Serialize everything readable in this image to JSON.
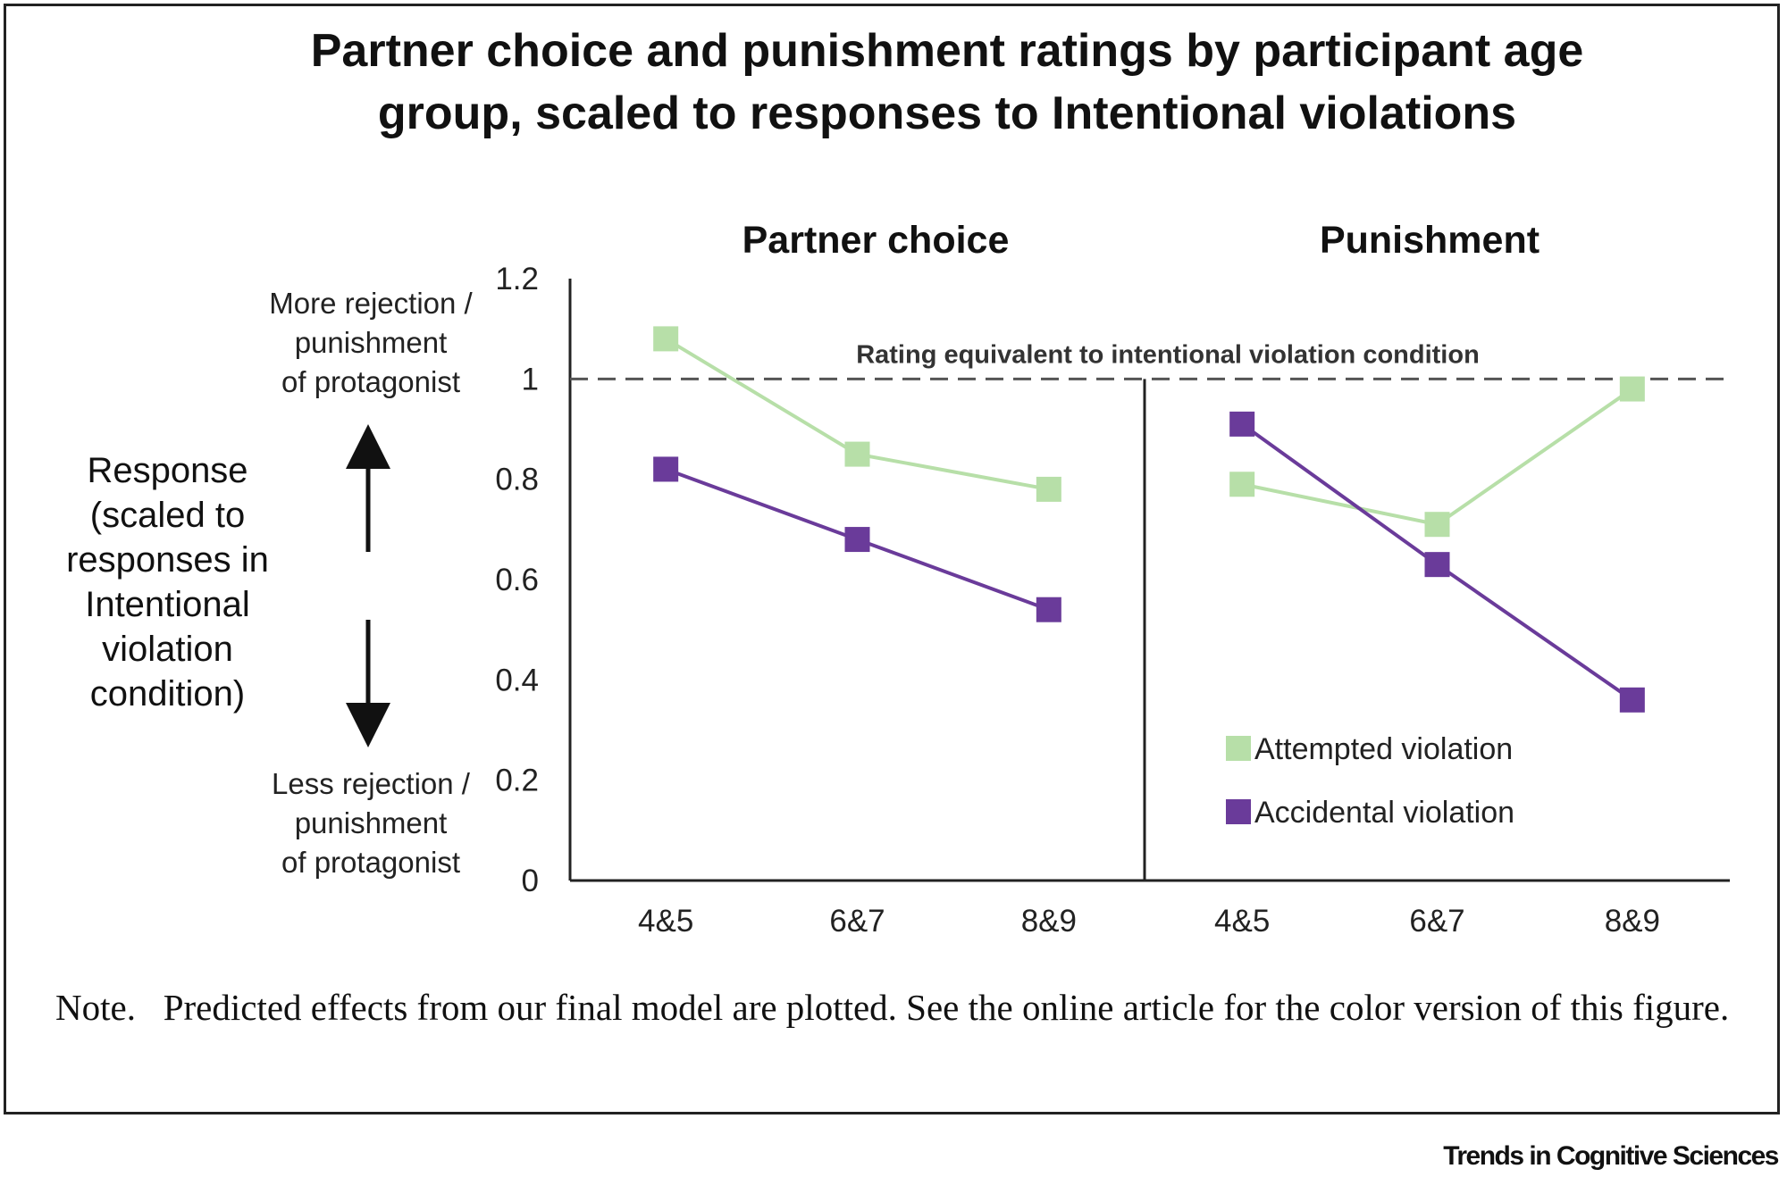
{
  "figure": {
    "title_lines": [
      "Partner choice and punishment ratings by participant age",
      "group, scaled to responses to Intentional violations"
    ],
    "ylabel_lines": [
      "Response",
      "(scaled to",
      "responses in",
      "Intentional",
      "violation",
      "condition)"
    ],
    "top_annotation_lines": [
      "More rejection /",
      "punishment",
      "of protagonist"
    ],
    "bottom_annotation_lines": [
      "Less rejection /",
      "punishment",
      "of protagonist"
    ],
    "note_label": "Note.",
    "note_text": "Predicted effects from our final model are plotted. See the online article for the color version of this figure.",
    "credit": "Trends in Cognitive Sciences"
  },
  "chart_data": {
    "type": "line",
    "ylim": [
      0,
      1.2
    ],
    "yticks": [
      "0",
      "0.2",
      "0.4",
      "0.6",
      "0.8",
      "1",
      "1.2"
    ],
    "reference_line": {
      "y": 1,
      "label": "Rating equivalent to intentional violation condition"
    },
    "legend_position": "bottom-right",
    "colors": {
      "Attempted violation": "#b7dfa8",
      "Accidental violation": "#6a3b9a"
    },
    "panels": [
      {
        "title": "Partner choice",
        "categories": [
          "4&5",
          "6&7",
          "8&9"
        ],
        "series": [
          {
            "name": "Attempted violation",
            "values": [
              1.08,
              0.85,
              0.78
            ]
          },
          {
            "name": "Accidental violation",
            "values": [
              0.82,
              0.68,
              0.54
            ]
          }
        ]
      },
      {
        "title": "Punishment",
        "categories": [
          "4&5",
          "6&7",
          "8&9"
        ],
        "series": [
          {
            "name": "Attempted violation",
            "values": [
              0.79,
              0.71,
              0.98
            ]
          },
          {
            "name": "Accidental violation",
            "values": [
              0.91,
              0.63,
              0.36
            ]
          }
        ]
      }
    ]
  }
}
